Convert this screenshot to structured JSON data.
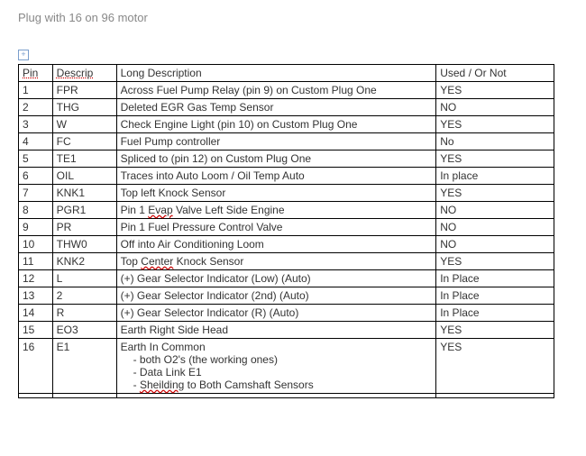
{
  "title": "Plug with 16 on 96 motor",
  "columns": [
    "Pin",
    "Descrip",
    "Long Description",
    "Used / Or Not"
  ],
  "rows": [
    {
      "pin": "1",
      "descrip": "FPR",
      "long": "Across Fuel Pump Relay (pin 9) on Custom Plug One",
      "used": "YES"
    },
    {
      "pin": "2",
      "descrip": "THG",
      "long": "Deleted EGR Gas Temp Sensor",
      "used": "NO"
    },
    {
      "pin": "3",
      "descrip": "W",
      "long": "Check Engine Light (pin 10) on Custom Plug One",
      "used": "YES"
    },
    {
      "pin": "4",
      "descrip": "FC",
      "long": "Fuel Pump controller",
      "used": "No"
    },
    {
      "pin": "5",
      "descrip": "TE1",
      "long": "Spliced to (pin 12) on Custom Plug One",
      "used": "YES"
    },
    {
      "pin": "6",
      "descrip": "OIL",
      "long": "Traces into Auto Loom / Oil Temp Auto",
      "used": "In place"
    },
    {
      "pin": "7",
      "descrip": "KNK1",
      "long": "Top left Knock Sensor",
      "used": "YES"
    },
    {
      "pin": "8",
      "descrip": "PGR1",
      "long": "Pin 1 Evap Valve Left Side Engine",
      "used": "NO",
      "spell": [
        "Evap"
      ]
    },
    {
      "pin": "9",
      "descrip": "PR",
      "long": "Pin 1 Fuel Pressure Control Valve",
      "used": "NO"
    },
    {
      "pin": "10",
      "descrip": "THW0",
      "long": "Off into Air Conditioning Loom",
      "used": "NO"
    },
    {
      "pin": "11",
      "descrip": "KNK2",
      "long": "Top Center Knock Sensor",
      "used": "YES",
      "spell": [
        "Center"
      ]
    },
    {
      "pin": "12",
      "descrip": "L",
      "long": "(+) Gear Selector Indicator (Low) (Auto)",
      "used": "In Place"
    },
    {
      "pin": "13",
      "descrip": "2",
      "long": "(+) Gear Selector Indicator (2nd) (Auto)",
      "used": "In Place"
    },
    {
      "pin": "14",
      "descrip": "R",
      "long": "(+) Gear Selector Indicator (R) (Auto)",
      "used": "In Place"
    },
    {
      "pin": "15",
      "descrip": "EO3",
      "long": "Earth Right Side Head",
      "used": "YES"
    },
    {
      "pin": "16",
      "descrip": "E1",
      "long": "Earth In Common",
      "used": "YES",
      "sub": [
        "- both O2's (the working ones)",
        "- Data Link E1",
        "- Sheilding to Both Camshaft Sensors"
      ],
      "spell": [
        "Sheilding"
      ]
    },
    {
      "pin": "",
      "descrip": "",
      "long": "",
      "used": ""
    }
  ],
  "colors": {
    "border": "#000000",
    "title": "#888888",
    "spell": "#cc0000",
    "bg": "#ffffff"
  }
}
